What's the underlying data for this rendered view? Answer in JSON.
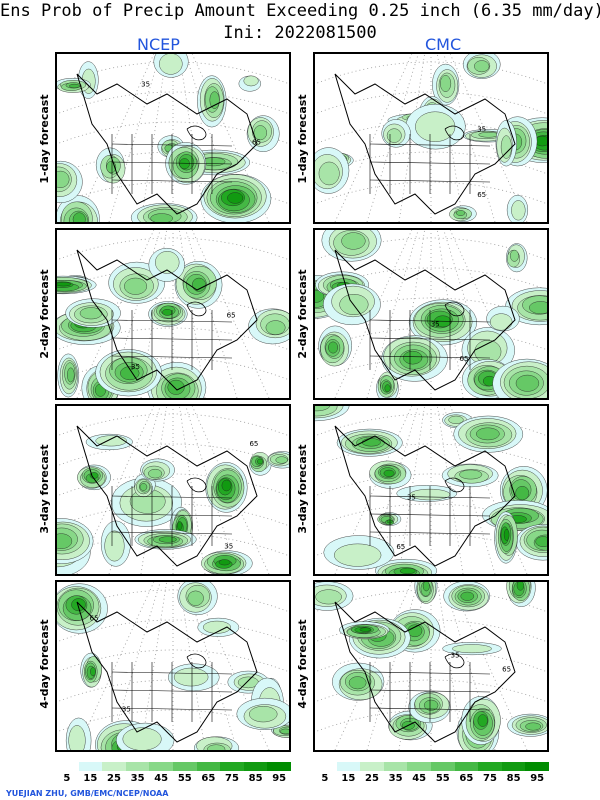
{
  "title": "Ens Prob of Precip Amount Exceeding 0.25 inch (6.35 mm/day)",
  "subtitle": "Ini: 2022081500",
  "columns": [
    "NCEP",
    "CMC"
  ],
  "rows": [
    "1-day forecast",
    "2-day forecast",
    "3-day forecast",
    "4-day forecast"
  ],
  "contour_labels": [
    "35",
    "65"
  ],
  "legend": {
    "values": [
      "5",
      "15",
      "25",
      "35",
      "45",
      "55",
      "65",
      "75",
      "85",
      "95"
    ],
    "colors": [
      "#ffffff",
      "#d8f8f8",
      "#c8f0c8",
      "#a8e4a8",
      "#88d888",
      "#66c866",
      "#44b844",
      "#22a822",
      "#119a11",
      "#008c00"
    ]
  },
  "credit": "YUEJIAN ZHU, GMB/EMC/NCEP/NOAA"
}
